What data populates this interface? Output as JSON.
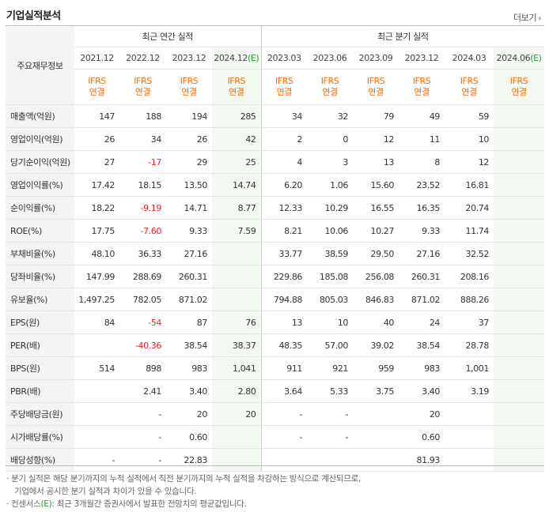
{
  "header": {
    "title": "기업실적분석",
    "more_label": "더보기"
  },
  "table": {
    "row_header_label": "주요재무정보",
    "group_annual": "최근 연간 실적",
    "group_quarter": "최근 분기 실적",
    "annual_periods": [
      "2021.12",
      "2022.12",
      "2023.12",
      "2024.12"
    ],
    "annual_estimate_suffix": "(E)",
    "quarter_periods": [
      "2023.03",
      "2023.06",
      "2023.09",
      "2023.12",
      "2024.03",
      "2024.06"
    ],
    "quarter_estimate_suffix": "(E)",
    "ifrs_line1": "IFRS",
    "ifrs_line2": "연결",
    "rows": [
      {
        "label": "매출액(억원)",
        "values": [
          "147",
          "188",
          "194",
          "285",
          "34",
          "32",
          "79",
          "49",
          "59",
          ""
        ]
      },
      {
        "label": "영업이익(억원)",
        "values": [
          "26",
          "34",
          "26",
          "42",
          "2",
          "0",
          "12",
          "11",
          "10",
          ""
        ]
      },
      {
        "label": "당기순이익(억원)",
        "values": [
          "27",
          "-17",
          "29",
          "25",
          "4",
          "3",
          "13",
          "8",
          "12",
          ""
        ]
      },
      {
        "label": "영업이익률(%)",
        "values": [
          "17.42",
          "18.15",
          "13.50",
          "14.74",
          "6.20",
          "1.06",
          "15.60",
          "23.52",
          "16.81",
          ""
        ]
      },
      {
        "label": "순이익률(%)",
        "values": [
          "18.22",
          "-9.19",
          "14.71",
          "8.77",
          "12.33",
          "10.29",
          "16.55",
          "16.35",
          "20.74",
          ""
        ]
      },
      {
        "label": "ROE(%)",
        "values": [
          "17.75",
          "-7.60",
          "9.33",
          "7.59",
          "8.21",
          "10.06",
          "10.27",
          "9.33",
          "11.74",
          ""
        ]
      },
      {
        "label": "부채비율(%)",
        "values": [
          "48.10",
          "36.33",
          "27.16",
          "",
          "33.77",
          "38.59",
          "29.50",
          "27.16",
          "32.52",
          ""
        ]
      },
      {
        "label": "당좌비율(%)",
        "values": [
          "147.99",
          "288.69",
          "260.31",
          "",
          "229.86",
          "185.08",
          "256.08",
          "260.31",
          "208.16",
          ""
        ]
      },
      {
        "label": "유보율(%)",
        "values": [
          "1,497.25",
          "782.05",
          "871.02",
          "",
          "794.88",
          "805.03",
          "846.83",
          "871.02",
          "888.26",
          ""
        ]
      },
      {
        "label": "EPS(원)",
        "values": [
          "84",
          "-54",
          "87",
          "76",
          "13",
          "10",
          "40",
          "24",
          "37",
          ""
        ]
      },
      {
        "label": "PER(배)",
        "values": [
          "",
          "-40.36",
          "38.54",
          "38.37",
          "48.35",
          "57.00",
          "39.02",
          "38.54",
          "28.78",
          ""
        ]
      },
      {
        "label": "BPS(원)",
        "values": [
          "514",
          "898",
          "983",
          "1,041",
          "911",
          "921",
          "959",
          "983",
          "1,001",
          ""
        ]
      },
      {
        "label": "PBR(배)",
        "values": [
          "",
          "2.41",
          "3.40",
          "2.80",
          "3.64",
          "5.33",
          "3.75",
          "3.40",
          "3.19",
          ""
        ]
      },
      {
        "label": "주당배당금(원)",
        "values": [
          "",
          "-",
          "20",
          "20",
          "-",
          "-",
          "",
          "20",
          "",
          ""
        ]
      },
      {
        "label": "시가배당률(%)",
        "values": [
          "",
          "-",
          "0.60",
          "",
          "-",
          "-",
          "",
          "0.60",
          "",
          ""
        ]
      },
      {
        "label": "배당성향(%)",
        "values": [
          "-",
          "-",
          "22.83",
          "",
          "",
          "",
          "",
          "81.93",
          "",
          ""
        ]
      }
    ]
  },
  "notes": {
    "line1": "· 분기 실적은 해당 분기까지의 누적 실적에서 직전 분기까지의 누적 실적을 차감하는 방식으로 계산되므로,",
    "line2": "기업에서 공시한 분기 실적과 차이가 있을 수 있습니다.",
    "line3_prefix": "· 컨센서스",
    "line3_badge": "(E)",
    "line3_suffix": ": 최근 3개월간 증권사에서 발표한 전망치의 평균값입니다."
  },
  "colors": {
    "negative": "#e12727",
    "ifrs": "#ff6b00",
    "estimate_bg": "#f1f9f1",
    "estimate_badge": "#2a9c3a"
  }
}
